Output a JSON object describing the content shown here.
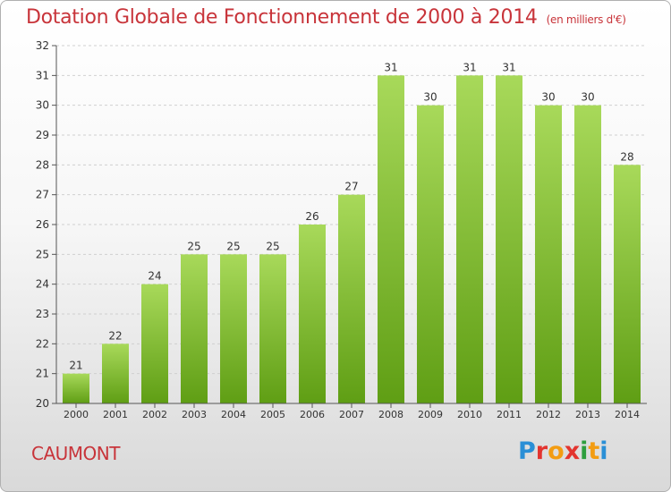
{
  "header": {
    "title": "Dotation Globale de Fonctionnement de 2000 à 2014",
    "unit_note": "(en milliers d'€)"
  },
  "footer": {
    "place": "CAUMONT",
    "logo": {
      "letters": [
        "P",
        "r",
        "o",
        "x",
        "i",
        "t",
        "i"
      ],
      "colors": [
        "#2a8fd6",
        "#e3342f",
        "#f39c12",
        "#e3342f",
        "#2e9e3e",
        "#f39c12",
        "#2a8fd6"
      ]
    }
  },
  "colors": {
    "title": "#c8343a",
    "bar_top": "#a8d95a",
    "bar_bottom": "#5f9e14",
    "axis": "#555555",
    "grid": "#d0d0d0"
  },
  "chart_data": {
    "type": "bar",
    "categories": [
      "2000",
      "2001",
      "2002",
      "2003",
      "2004",
      "2005",
      "2006",
      "2007",
      "2008",
      "2009",
      "2010",
      "2011",
      "2012",
      "2013",
      "2014"
    ],
    "values": [
      21,
      22,
      24,
      25,
      25,
      25,
      26,
      27,
      31,
      30,
      31,
      31,
      30,
      30,
      28
    ],
    "title": "Dotation Globale de Fonctionnement de 2000 à 2014",
    "ylim": [
      20,
      32
    ],
    "yticks": [
      20,
      21,
      22,
      23,
      24,
      25,
      26,
      27,
      28,
      29,
      30,
      31,
      32
    ],
    "grid": true,
    "legend": "none"
  }
}
